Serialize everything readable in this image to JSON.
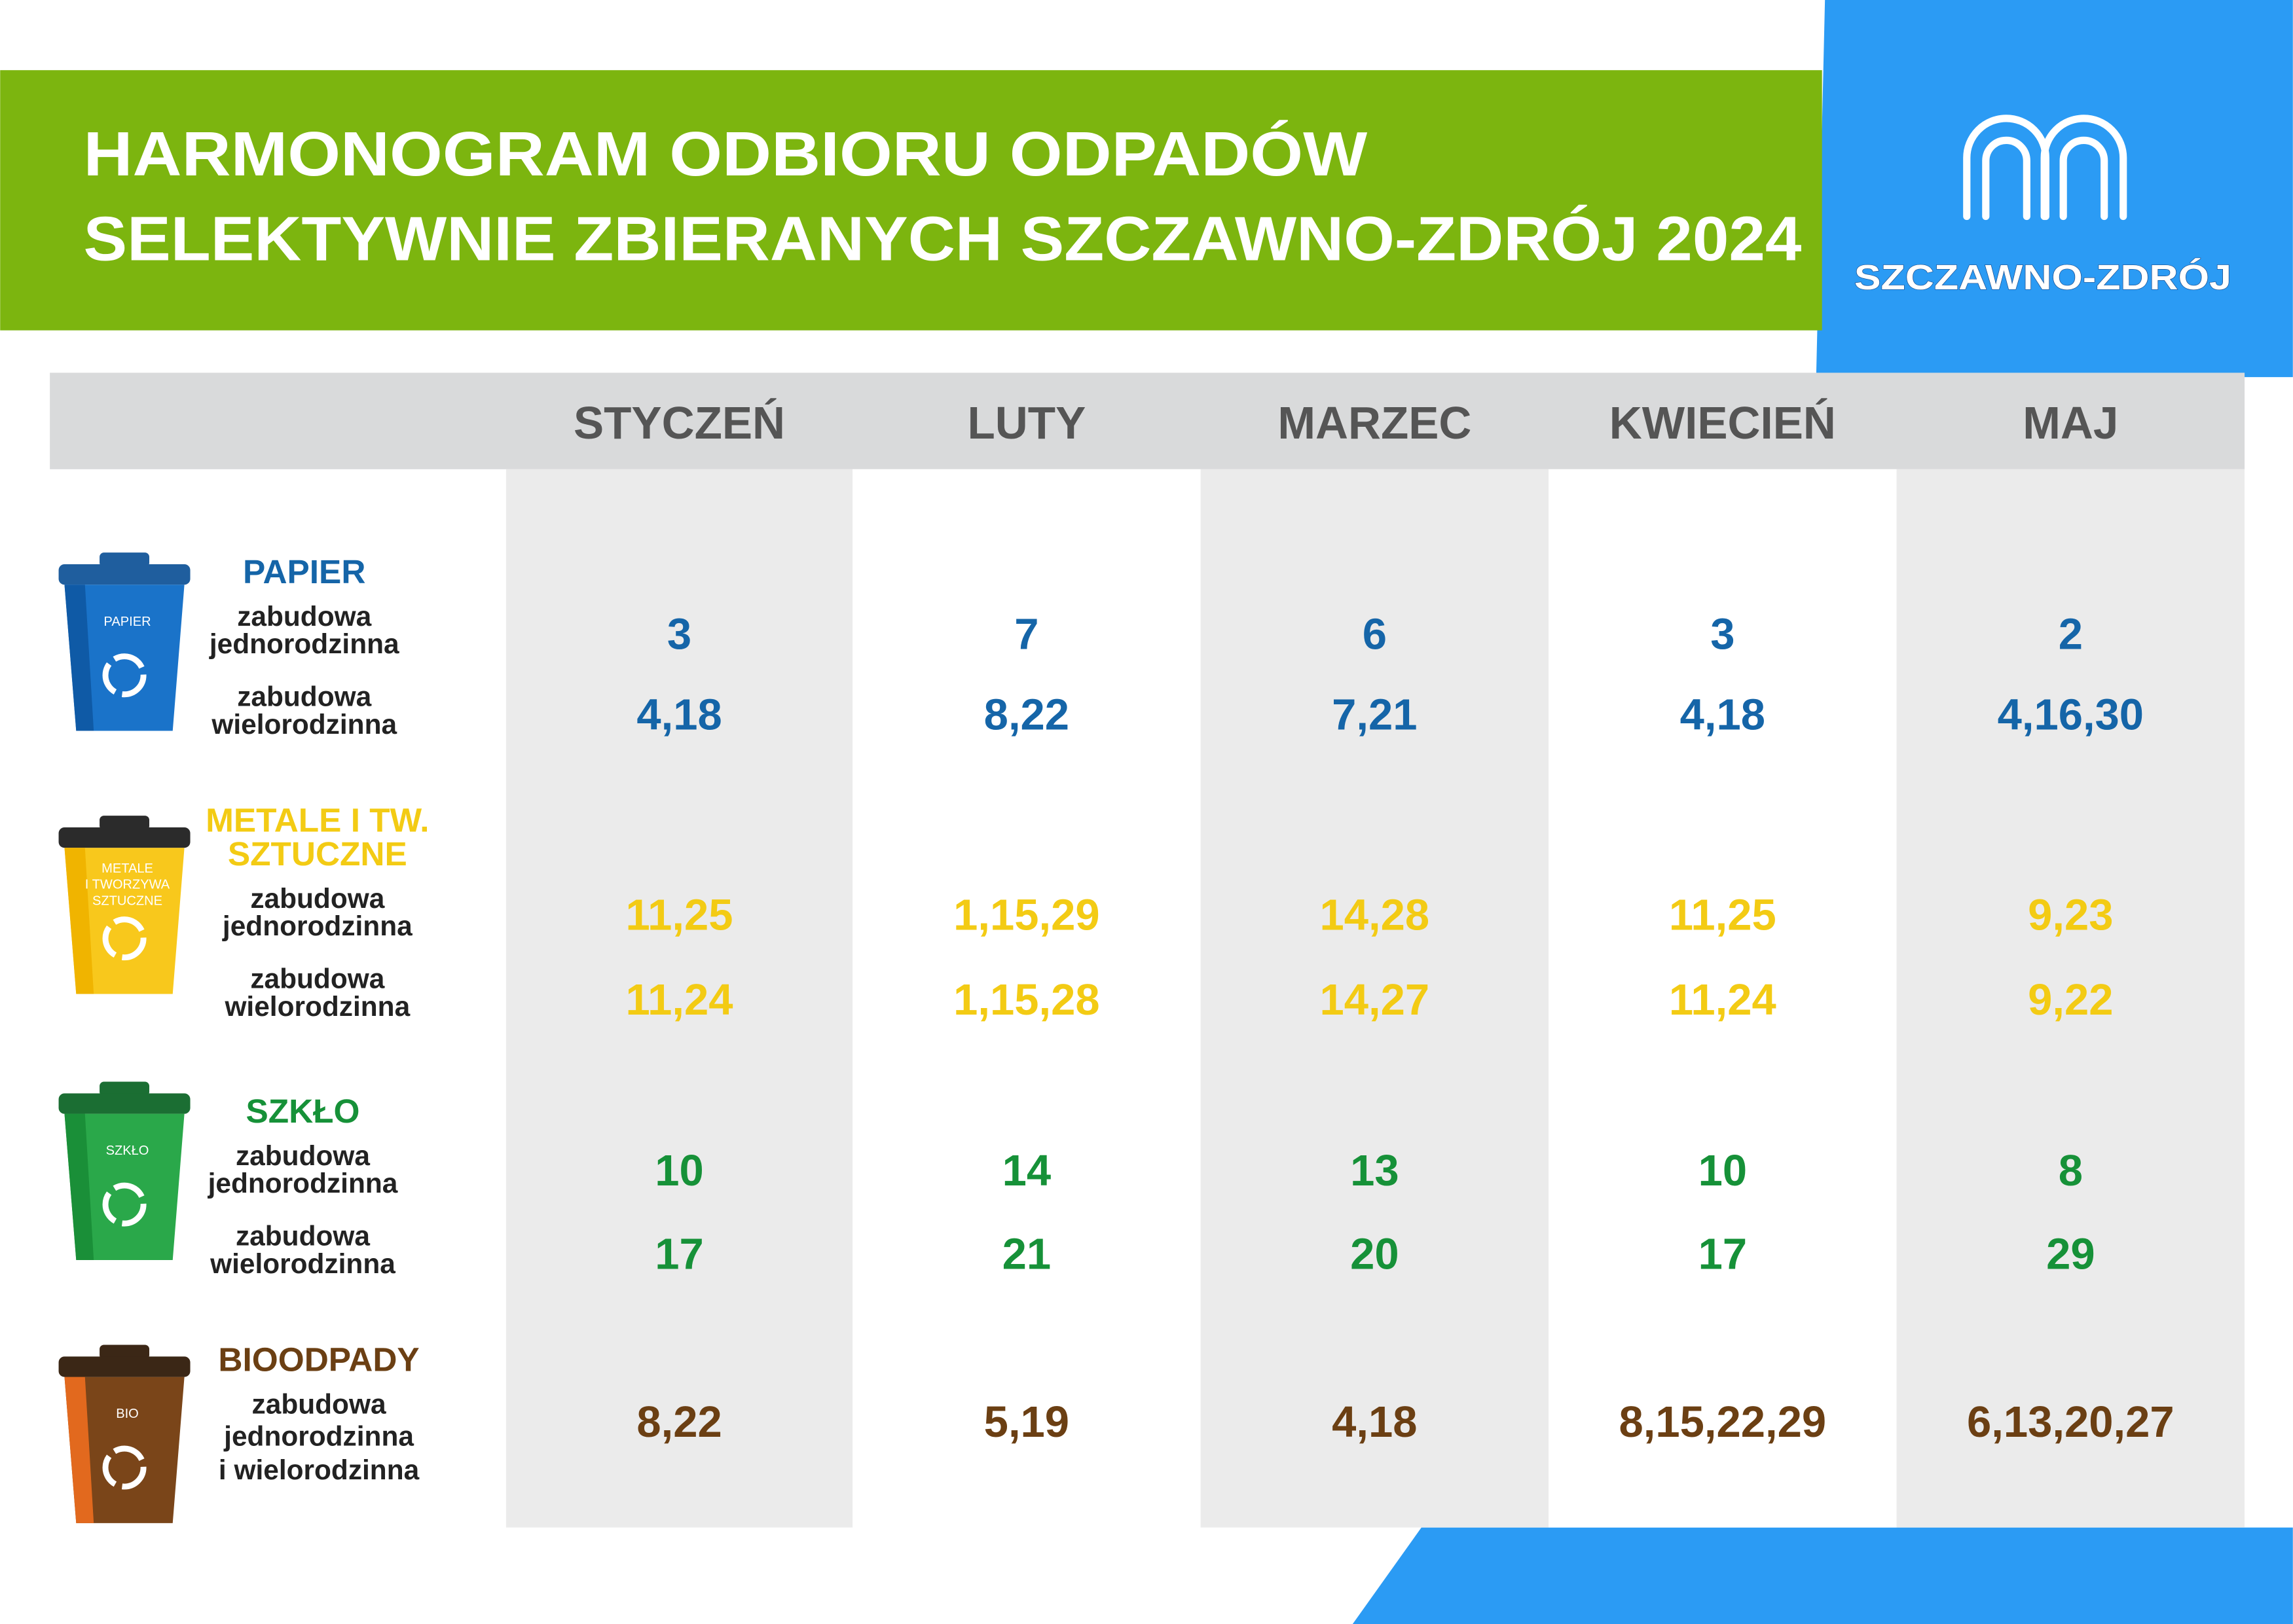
{
  "header": {
    "title_lines": [
      "HARMONOGRAM ODBIORU ODPADÓW",
      "SELEKTYWNIE ZBIERANYCH SZCZAWNO-ZDRÓJ 2024"
    ],
    "logo_text": "SZCZAWNO-ZDRÓJ"
  },
  "table": {
    "months": [
      "STYCZEŃ",
      "LUTY",
      "MARZEC",
      "KWIECIEŃ",
      "MAJ"
    ],
    "groups": [
      {
        "name_lines": [
          "PAPIER"
        ],
        "bin_label_lines": [
          "PAPIER"
        ],
        "rows": [
          {
            "label_lines": [
              "zabudowa",
              "jednorodzinna"
            ],
            "values": [
              "3",
              "7",
              "6",
              "3",
              "2"
            ]
          },
          {
            "label_lines": [
              "zabudowa",
              "wielorodzinna"
            ],
            "values": [
              "4,18",
              "8,22",
              "7,21",
              "4,18",
              "4,16,30"
            ]
          }
        ]
      },
      {
        "name_lines": [
          "METALE I TW.",
          "SZTUCZNE"
        ],
        "bin_label_lines": [
          "METALE",
          "I TWORZYWA",
          "SZTUCZNE"
        ],
        "rows": [
          {
            "label_lines": [
              "zabudowa",
              "jednorodzinna"
            ],
            "values": [
              "11,25",
              "1,15,29",
              "14,28",
              "11,25",
              "9,23"
            ]
          },
          {
            "label_lines": [
              "zabudowa",
              "wielorodzinna"
            ],
            "values": [
              "11,24",
              "1,15,28",
              "14,27",
              "11,24",
              "9,22"
            ]
          }
        ]
      },
      {
        "name_lines": [
          "SZKŁO"
        ],
        "bin_label_lines": [
          "SZKŁO"
        ],
        "rows": [
          {
            "label_lines": [
              "zabudowa",
              "jednorodzinna"
            ],
            "values": [
              "10",
              "14",
              "13",
              "10",
              "8"
            ]
          },
          {
            "label_lines": [
              "zabudowa",
              "wielorodzinna"
            ],
            "values": [
              "17",
              "21",
              "20",
              "17",
              "29"
            ]
          }
        ]
      },
      {
        "name_lines": [
          "BIOODPADY"
        ],
        "bin_label_lines": [
          "BIO"
        ],
        "rows": [
          {
            "label_lines": [
              "zabudowa",
              "jednorodzinna",
              "i wielorodzinna"
            ],
            "values": [
              "8,22",
              "5,19",
              "4,18",
              "8,15,22,29",
              "6,13,20,27"
            ]
          }
        ]
      }
    ]
  }
}
